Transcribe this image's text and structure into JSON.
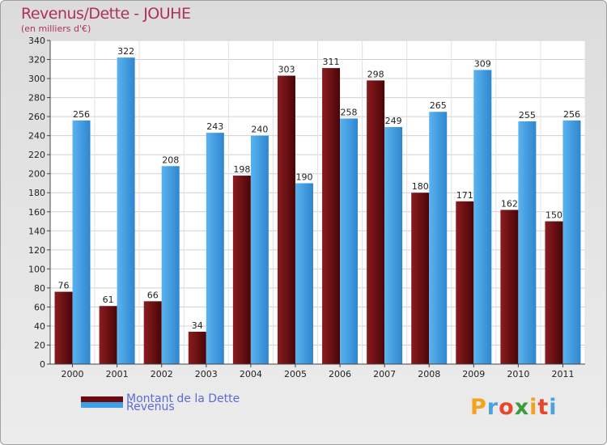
{
  "chart_data": {
    "type": "bar",
    "title": "Revenus/Dette - JOUHE",
    "subtitle": "(en milliers d'€)",
    "categories": [
      "2000",
      "2001",
      "2002",
      "2003",
      "2004",
      "2005",
      "2006",
      "2007",
      "2008",
      "2009",
      "2010",
      "2011"
    ],
    "series": [
      {
        "name": "Montant de la Dette",
        "color": "#6b0d10",
        "values": [
          76,
          61,
          66,
          34,
          198,
          303,
          311,
          298,
          180,
          171,
          162,
          150
        ]
      },
      {
        "name": "Revenus",
        "color": "#3d9fe6",
        "values": [
          256,
          322,
          208,
          243,
          240,
          190,
          258,
          249,
          265,
          309,
          255,
          256
        ]
      }
    ],
    "ylim": [
      0,
      340
    ],
    "ytick_step": 20,
    "grid": true,
    "legend_position": "bottom-left"
  },
  "logo": {
    "text": "Proxiti"
  }
}
